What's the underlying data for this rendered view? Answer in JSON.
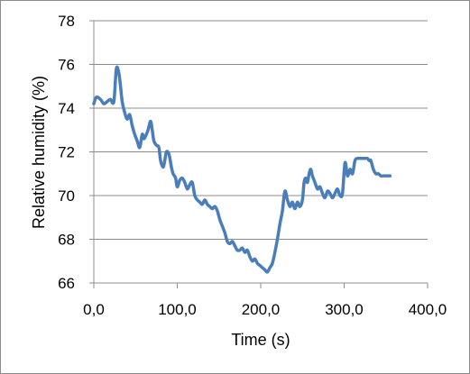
{
  "chart_data": {
    "type": "line",
    "title": "",
    "xlabel": "Time (s)",
    "ylabel": "Relative humidity (%)",
    "xlim": [
      0,
      400
    ],
    "ylim": [
      66,
      78
    ],
    "xticks": [
      0,
      100,
      200,
      300,
      400
    ],
    "xtick_labels": [
      "0,0",
      "100,0",
      "200,0",
      "300,0",
      "400,0"
    ],
    "yticks": [
      66,
      68,
      70,
      72,
      74,
      76,
      78
    ],
    "ytick_labels": [
      "66",
      "68",
      "70",
      "72",
      "74",
      "76",
      "78"
    ],
    "grid": "horizontal",
    "legend": "none",
    "series_color": "#4a7ebb",
    "series": [
      {
        "x": [
          0,
          3,
          8,
          12,
          16,
          20,
          24,
          27,
          30,
          32,
          34,
          37,
          40,
          43,
          46,
          49,
          52,
          55,
          58,
          60,
          63,
          65,
          68,
          70,
          72,
          75,
          78,
          80,
          83,
          85,
          87,
          90,
          93,
          95,
          98,
          100,
          103,
          106,
          109,
          112,
          115,
          118,
          121,
          124,
          127,
          130,
          133,
          136,
          139,
          142,
          145,
          148,
          151,
          154,
          157,
          160,
          163,
          166,
          169,
          172,
          175,
          178,
          181,
          184,
          187,
          190,
          193,
          196,
          199,
          202,
          205,
          208,
          211,
          214,
          217,
          220,
          223,
          226,
          229,
          232,
          235,
          238,
          241,
          244,
          247,
          250,
          252,
          254,
          256,
          258,
          260,
          262,
          265,
          268,
          271,
          274,
          277,
          280,
          283,
          286,
          289,
          292,
          295,
          298,
          301,
          304,
          307,
          310,
          313,
          316,
          319,
          322,
          325,
          328,
          330,
          332,
          335,
          338,
          341,
          344,
          347,
          350,
          353,
          355
        ],
        "y": [
          74.2,
          74.5,
          74.4,
          74.2,
          74.3,
          74.4,
          74.3,
          75.8,
          75.6,
          75.0,
          74.3,
          73.8,
          73.5,
          73.7,
          73.2,
          72.8,
          72.5,
          72.2,
          72.8,
          72.6,
          72.8,
          73.0,
          73.4,
          73.0,
          72.5,
          72.3,
          72.2,
          71.6,
          71.3,
          71.6,
          72.0,
          71.9,
          71.3,
          71.0,
          70.8,
          70.4,
          70.7,
          70.8,
          70.6,
          70.3,
          70.5,
          70.6,
          70.0,
          69.8,
          69.7,
          69.6,
          69.8,
          69.6,
          69.5,
          69.4,
          69.5,
          69.3,
          68.9,
          68.6,
          68.3,
          67.9,
          67.8,
          67.9,
          67.7,
          67.5,
          67.5,
          67.6,
          67.4,
          67.5,
          67.2,
          67.0,
          67.1,
          66.9,
          66.8,
          66.7,
          66.6,
          66.5,
          66.7,
          66.9,
          67.4,
          68.0,
          68.7,
          69.3,
          70.2,
          69.8,
          69.5,
          69.7,
          69.4,
          69.7,
          69.5,
          69.8,
          70.6,
          70.8,
          70.6,
          71.0,
          71.2,
          70.9,
          70.6,
          70.3,
          70.4,
          70.1,
          69.9,
          70.2,
          70.1,
          69.9,
          70.1,
          70.3,
          70.0,
          70.1,
          71.5,
          70.9,
          71.2,
          71.0,
          71.6,
          71.7,
          71.7,
          71.7,
          71.7,
          71.7,
          71.6,
          71.6,
          71.2,
          71.0,
          71.0,
          70.9,
          70.9,
          70.9,
          70.9,
          70.9
        ],
        "note_ignore": ""
      }
    ]
  }
}
